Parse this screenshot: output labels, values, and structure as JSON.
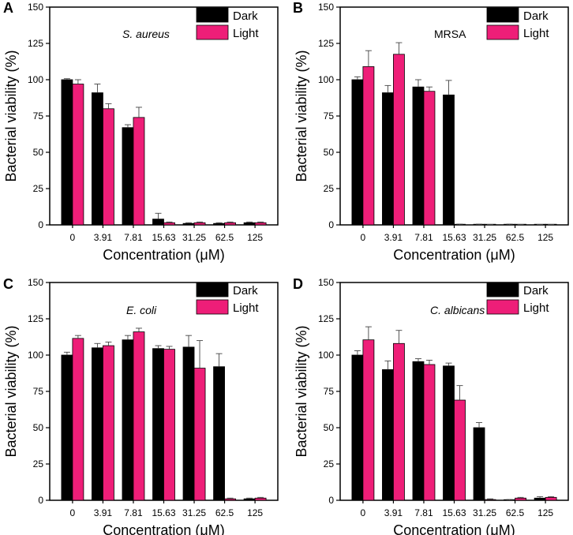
{
  "colors": {
    "dark": "#000000",
    "light": "#ee1e78",
    "axis": "#000000"
  },
  "chart_data": [
    {
      "type": "bar",
      "panel": "A",
      "title": "S. aureus",
      "title_italic": true,
      "xlabel": "Concentration (μM)",
      "ylabel": "Bacterial viability (%)",
      "ylim": [
        0,
        150
      ],
      "yticks": [
        0,
        25,
        50,
        75,
        100,
        125,
        150
      ],
      "categories": [
        "0",
        "3.91",
        "7.81",
        "15.63",
        "31.25",
        "62.5",
        "125"
      ],
      "legend": [
        "Dark",
        "Light"
      ],
      "series": [
        {
          "name": "Dark",
          "values": [
            100,
            91,
            67,
            4,
            1,
            1,
            1.5
          ],
          "errors": [
            0.7,
            6,
            2,
            4,
            0.5,
            0.5,
            0.5
          ]
        },
        {
          "name": "Light",
          "values": [
            97,
            80,
            74,
            1.5,
            1.5,
            1.5,
            1.5
          ],
          "errors": [
            3,
            3.5,
            7,
            0.5,
            0.5,
            0.5,
            0.5
          ]
        }
      ]
    },
    {
      "type": "bar",
      "panel": "B",
      "title": "MRSA",
      "title_italic": false,
      "xlabel": "Concentration (μM)",
      "ylabel": "Bacterial viability (%)",
      "ylim": [
        0,
        150
      ],
      "yticks": [
        0,
        25,
        50,
        75,
        100,
        125,
        150
      ],
      "categories": [
        "0",
        "3.91",
        "7.81",
        "15.63",
        "31.25",
        "62.5",
        "125"
      ],
      "legend": [
        "Dark",
        "Light"
      ],
      "series": [
        {
          "name": "Dark",
          "values": [
            100,
            91,
            95,
            89.5,
            0,
            0,
            0
          ],
          "errors": [
            2,
            5,
            5,
            10,
            0.5,
            0.5,
            0.3
          ]
        },
        {
          "name": "Light",
          "values": [
            109,
            117.5,
            92,
            0,
            0,
            0,
            0
          ],
          "errors": [
            11,
            8,
            3,
            0.5,
            0.3,
            0.3,
            0.3
          ]
        }
      ]
    },
    {
      "type": "bar",
      "panel": "C",
      "title": "E. coli",
      "title_italic": true,
      "xlabel": "Concentration (μM)",
      "ylabel": "Bacterial viability (%)",
      "ylim": [
        0,
        150
      ],
      "yticks": [
        0,
        25,
        50,
        75,
        100,
        125,
        150
      ],
      "categories": [
        "0",
        "3.91",
        "7.81",
        "15.63",
        "31.25",
        "62.5",
        "125"
      ],
      "legend": [
        "Dark",
        "Light"
      ],
      "series": [
        {
          "name": "Dark",
          "values": [
            100,
            105,
            110.5,
            104.5,
            105.5,
            92,
            1
          ],
          "errors": [
            2,
            3,
            3,
            2,
            8,
            9,
            0.5
          ]
        },
        {
          "name": "Light",
          "values": [
            111.5,
            106.5,
            116,
            104,
            91,
            1,
            1.5
          ],
          "errors": [
            2,
            2.5,
            2.5,
            2,
            19,
            0.5,
            0.5
          ]
        }
      ]
    },
    {
      "type": "bar",
      "panel": "D",
      "title": "C. albicans",
      "title_italic": true,
      "xlabel": "Concentration (μM)",
      "ylabel": "Bacterial viability (%)",
      "ylim": [
        0,
        150
      ],
      "yticks": [
        0,
        25,
        50,
        75,
        100,
        125,
        150
      ],
      "categories": [
        "0",
        "3.91",
        "7.81",
        "15.63",
        "31.25",
        "62.5",
        "125"
      ],
      "legend": [
        "Dark",
        "Light"
      ],
      "series": [
        {
          "name": "Dark",
          "values": [
            100,
            90,
            95.5,
            92.5,
            50,
            0,
            1.5
          ],
          "errors": [
            3,
            6,
            2,
            2,
            3.5,
            0.5,
            1
          ]
        },
        {
          "name": "Light",
          "values": [
            110.5,
            108,
            93.5,
            69,
            0.5,
            1.5,
            2
          ],
          "errors": [
            9,
            9,
            3,
            10,
            0.5,
            0.5,
            0.5
          ]
        }
      ]
    }
  ]
}
